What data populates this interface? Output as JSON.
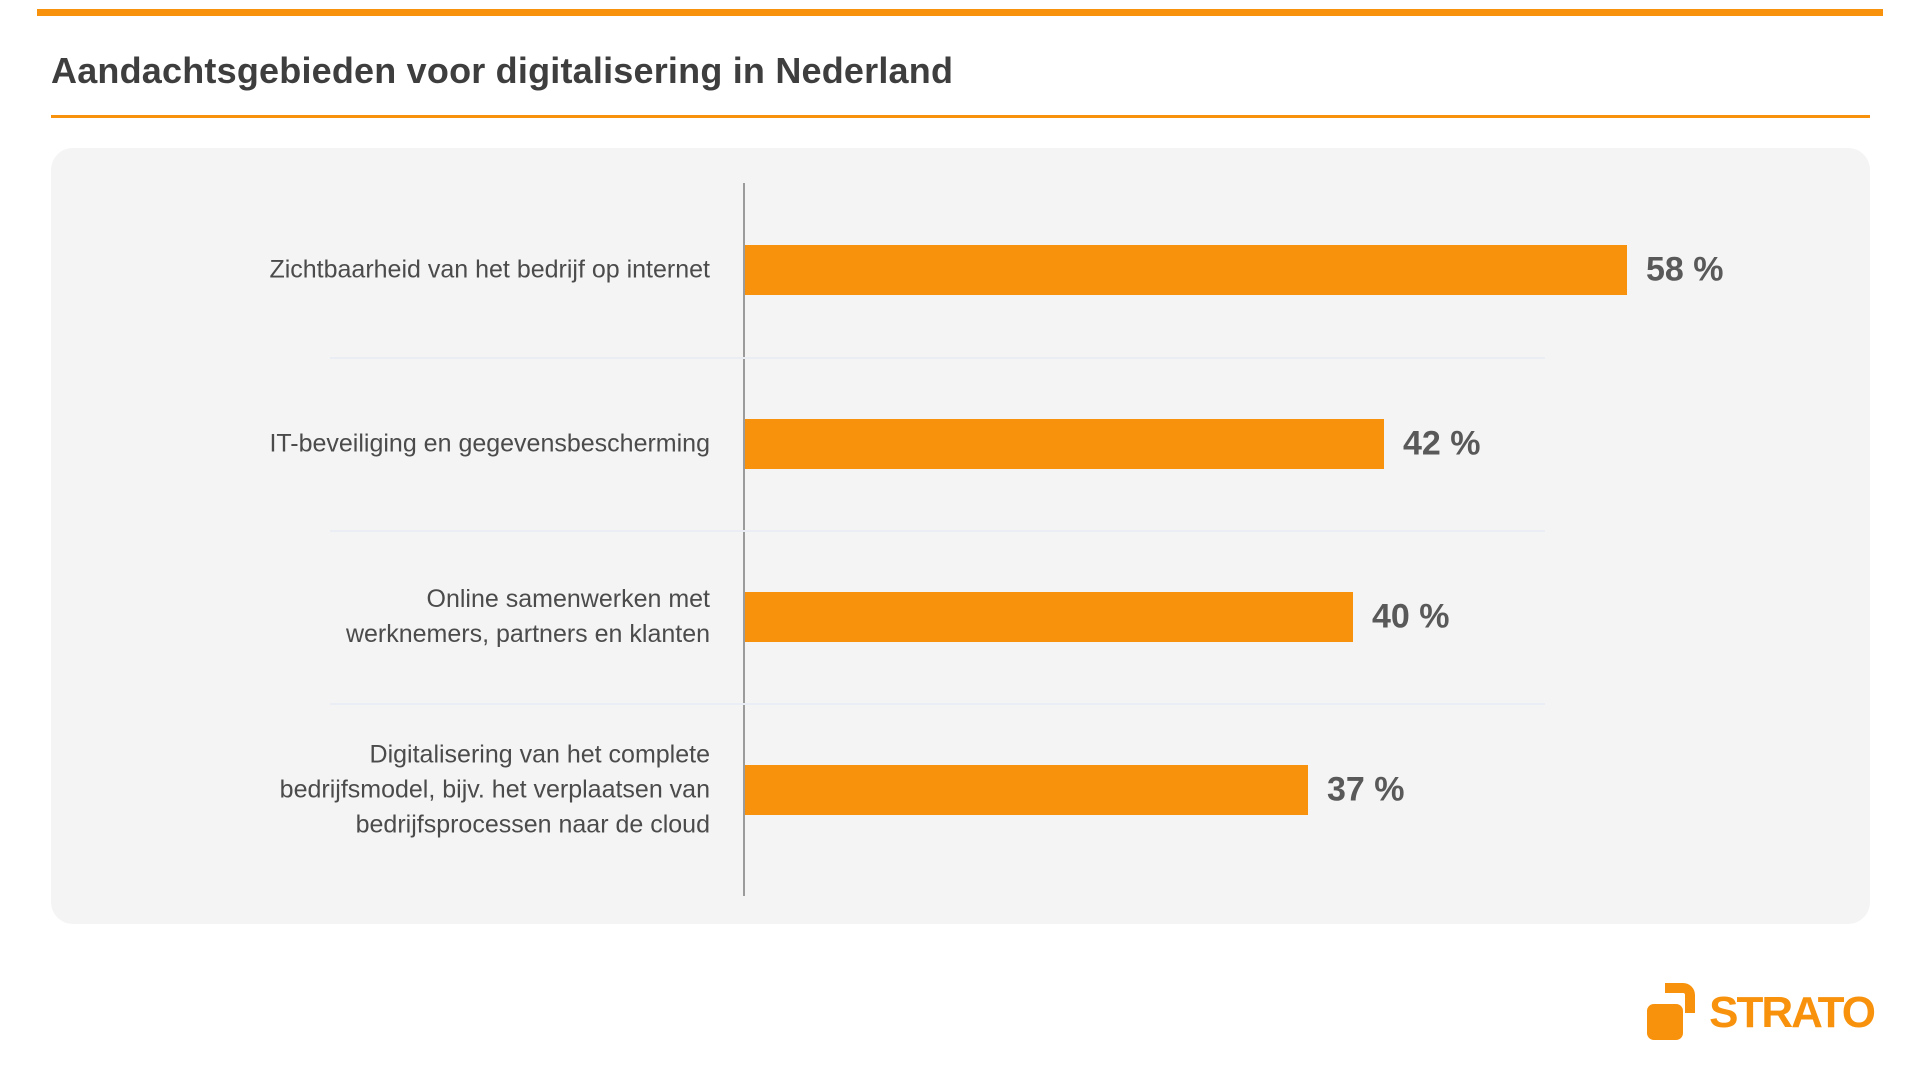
{
  "header": {
    "title": "Aandachtsgebieden voor digitalisering in Nederland"
  },
  "chart_data": {
    "type": "bar",
    "orientation": "horizontal",
    "title": "Aandachtsgebieden voor digitalisering in Nederland",
    "categories": [
      "Zichtbaarheid van het bedrijf op internet",
      "IT-beveiliging en gegevensbescherming",
      "Online samenwerken met werknemers, partners en klanten",
      "Digitalisering van het complete bedrijfsmodel, bijv. het verplaatsen van bedrijfsprocessen naar de cloud"
    ],
    "category_display_lines": [
      [
        "Zichtbaarheid van het bedrijf op internet"
      ],
      [
        "IT-beveiliging en gegevensbescherming"
      ],
      [
        "Online samenwerken met",
        "werknemers, partners en klanten"
      ],
      [
        "Digitalisering van het complete",
        "bedrijfsmodel, bijv. het verplaatsen van",
        "bedrijfsprocessen naar de cloud"
      ]
    ],
    "values": [
      58,
      42,
      40,
      37
    ],
    "value_labels": [
      "58 %",
      "42 %",
      "40 %",
      "37 %"
    ],
    "value_suffix": " %",
    "xlim": [
      0,
      74
    ],
    "bar_color": "#F8920D",
    "legend_position": "none",
    "gridlines": "faint horizontal separators between rows, single vertical baseline axis"
  },
  "footer": {
    "brand": "STRATO"
  },
  "colors": {
    "accent": "#F8920D",
    "card_background": "#F4F4F5",
    "title_text": "#3E3E3E",
    "label_text": "#4B4B4B",
    "value_text": "#595959",
    "axis_line": "#9B9B9B",
    "separator": "#EAEDF3"
  }
}
